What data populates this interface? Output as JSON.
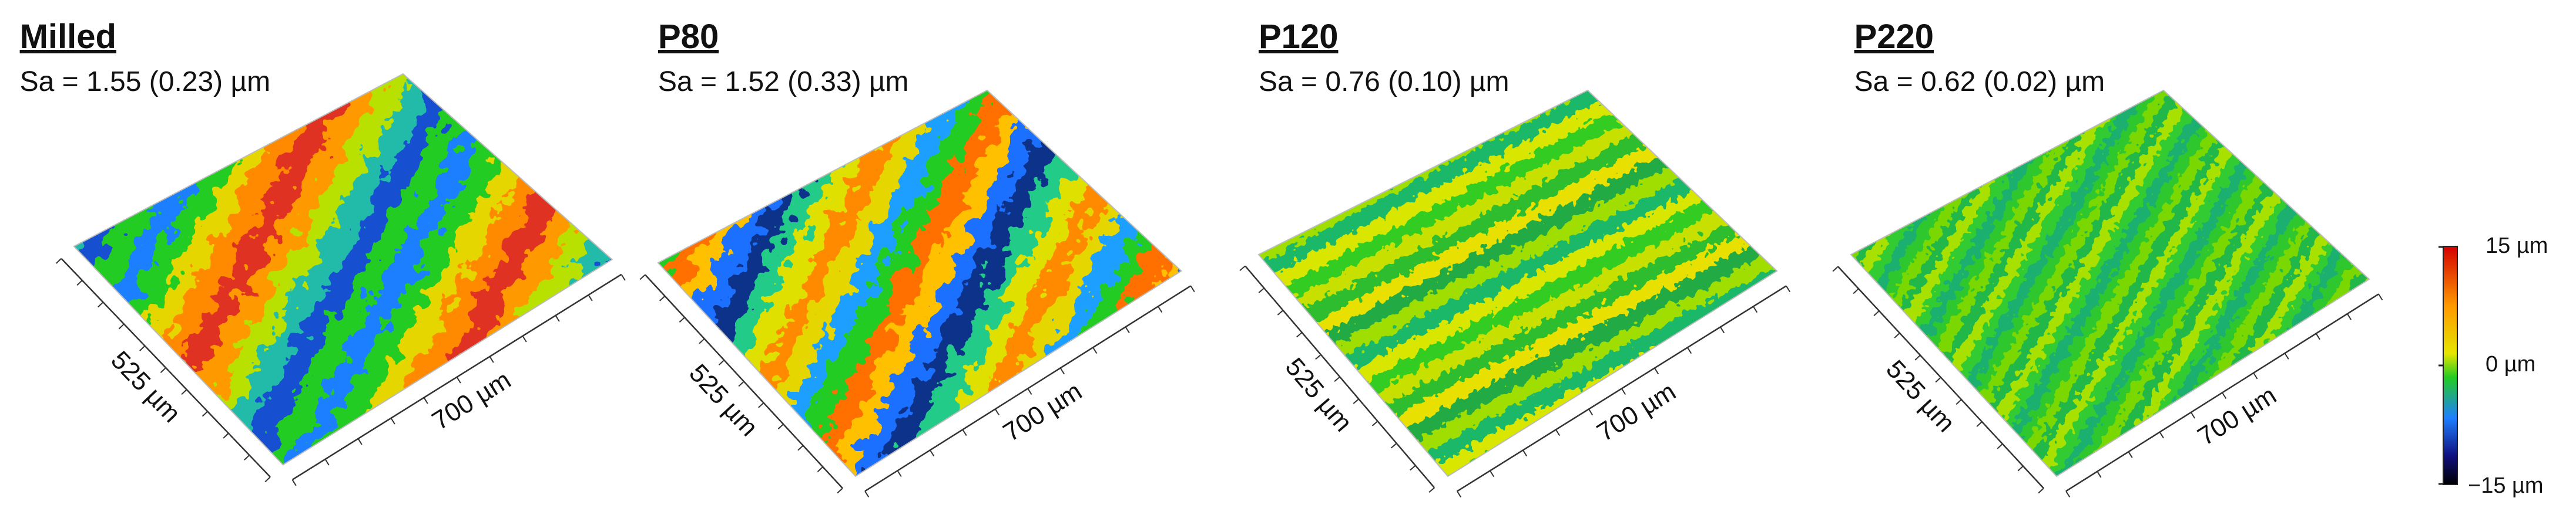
{
  "panels": [
    {
      "title": "Milled",
      "roughness": "Sa = 1.55 (0.23) µm",
      "width_label": "525 µm",
      "length_label": "700 µm"
    },
    {
      "title": "P80",
      "roughness": "Sa = 1.52 (0.33) µm",
      "width_label": "525 µm",
      "length_label": "700 µm"
    },
    {
      "title": "P120",
      "roughness": "Sa = 0.76 (0.10) µm",
      "width_label": "525 µm",
      "length_label": "700 µm"
    },
    {
      "title": "P220",
      "roughness": "Sa = 0.62 (0.02) µm",
      "width_label": "525 µm",
      "length_label": "700 µm"
    }
  ],
  "colorbar": {
    "max_label": "15 µm",
    "mid_label": "0 µm",
    "min_label": "−15 µm"
  }
}
